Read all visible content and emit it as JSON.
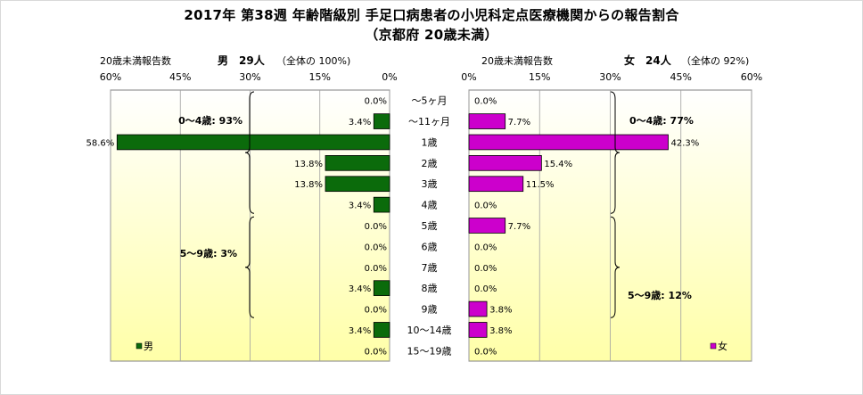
{
  "title": "2017年 第38週 年齢階級別 手足口病患者の小児科定点医療機関からの報告割合",
  "subtitle": "（京都府 20歳未満）",
  "colors": {
    "male": "#0b6b0b",
    "female": "#cc00cc",
    "plot_top": "#ffffff",
    "plot_bottom": "#ffffa8",
    "grid": "#a0a0a0"
  },
  "chart_data": {
    "type": "bar",
    "categories": [
      "～5ヶ月",
      "～11ヶ月",
      "1歳",
      "2歳",
      "3歳",
      "4歳",
      "5歳",
      "6歳",
      "7歳",
      "8歳",
      "9歳",
      "10～14歳",
      "15～19歳"
    ],
    "series": [
      {
        "name": "男",
        "values": [
          0.0,
          3.4,
          58.6,
          13.8,
          13.8,
          3.4,
          0.0,
          0.0,
          0.0,
          3.4,
          0.0,
          3.4,
          0.0
        ],
        "labels": [
          "0.0%",
          "3.4%",
          "58.6%",
          "13.8%",
          "13.8%",
          "3.4%",
          "0.0%",
          "0.0%",
          "0.0%",
          "3.4%",
          "0.0%",
          "3.4%",
          "0.0%"
        ]
      },
      {
        "name": "女",
        "values": [
          0.0,
          7.7,
          42.3,
          15.4,
          11.5,
          0.0,
          7.7,
          0.0,
          0.0,
          0.0,
          3.8,
          3.8,
          0.0
        ],
        "labels": [
          "0.0%",
          "7.7%",
          "42.3%",
          "15.4%",
          "11.5%",
          "0.0%",
          "7.7%",
          "0.0%",
          "0.0%",
          "0.0%",
          "3.8%",
          "3.8%",
          "0.0%"
        ]
      }
    ],
    "xlim": [
      0,
      60
    ],
    "tick_values": [
      0,
      15,
      30,
      45,
      60
    ],
    "male_ticks": [
      "60%",
      "45%",
      "30%",
      "15%",
      "0%"
    ],
    "female_ticks": [
      "0%",
      "15%",
      "30%",
      "45%",
      "60%"
    ],
    "grid": true,
    "legend_position": "bottom-left of each panel"
  },
  "male_header": {
    "label": "20歳未満報告数",
    "sex": "男",
    "count": "29人",
    "total": "（全体の 100%)"
  },
  "female_header": {
    "label": "20歳未満報告数",
    "sex": "女",
    "count": "24人",
    "total": "（全体の 92%)"
  },
  "annotations": {
    "male_0_4": "0～4歳: 93%",
    "male_5_9": "5～9歳: 3%",
    "female_0_4": "0～4歳: 77%",
    "female_5_9": "5～9歳: 12%"
  },
  "legend": {
    "male": "男",
    "female": "女"
  }
}
